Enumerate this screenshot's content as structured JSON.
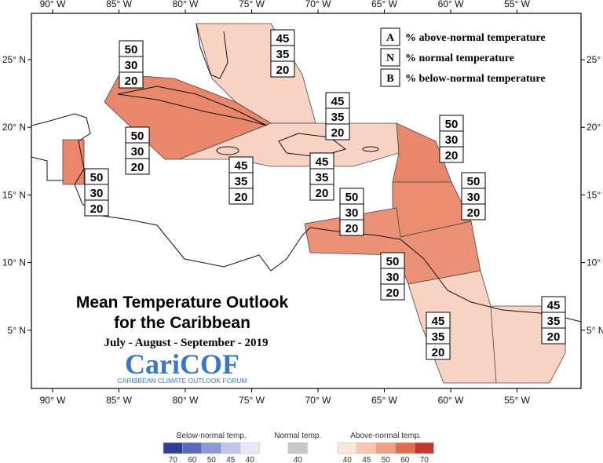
{
  "map": {
    "lon_labels": [
      "90° W",
      "85° W",
      "80° W",
      "75° W",
      "70° W",
      "65° W",
      "60° W",
      "55° W"
    ],
    "lat_labels": [
      "25° N",
      "20° N",
      "15° N",
      "10° N",
      "5° N"
    ],
    "key": [
      {
        "letter": "A",
        "text": "% above-normal temperature"
      },
      {
        "letter": "N",
        "text": "% normal temperature"
      },
      {
        "letter": "B",
        "text": "% below-normal temperature"
      }
    ],
    "regions": [
      {
        "A": 50,
        "N": 30,
        "B": 20
      },
      {
        "A": 45,
        "N": 35,
        "B": 20
      },
      {
        "A": 45,
        "N": 35,
        "B": 20
      },
      {
        "A": 50,
        "N": 30,
        "B": 20
      },
      {
        "A": 50,
        "N": 30,
        "B": 20
      },
      {
        "A": 50,
        "N": 30,
        "B": 20
      },
      {
        "A": 45,
        "N": 35,
        "B": 20
      },
      {
        "A": 45,
        "N": 35,
        "B": 20
      },
      {
        "A": 50,
        "N": 30,
        "B": 20
      },
      {
        "A": 50,
        "N": 30,
        "B": 20
      },
      {
        "A": 50,
        "N": 30,
        "B": 20
      },
      {
        "A": 45,
        "N": 35,
        "B": 20
      },
      {
        "A": 45,
        "N": 35,
        "B": 20
      }
    ],
    "title_lines": [
      "Mean Temperature Outlook",
      "for the Caribbean"
    ],
    "period": "July - August - September - 2019",
    "logo": "CariCOF",
    "logo_subtitle": "CARIBBEAN CLIMATE OUTLOOK FORUM"
  },
  "legend": [
    {
      "label": "Below-normal temp.",
      "ticks": [
        70,
        60,
        50,
        45,
        40
      ],
      "colors": [
        "#2f3e96",
        "#5b69bd",
        "#8d97d3",
        "#bfc5e8",
        "#e4e8f7"
      ]
    },
    {
      "label": "Normal temp.",
      "ticks": [
        40
      ],
      "colors": [
        "#c8c8c8"
      ]
    },
    {
      "label": "Above-normal temp.",
      "ticks": [
        40,
        45,
        50,
        60,
        70
      ],
      "colors": [
        "#fbe6dc",
        "#f6c6b1",
        "#ee9f82",
        "#de6e52",
        "#c0392b"
      ]
    }
  ]
}
